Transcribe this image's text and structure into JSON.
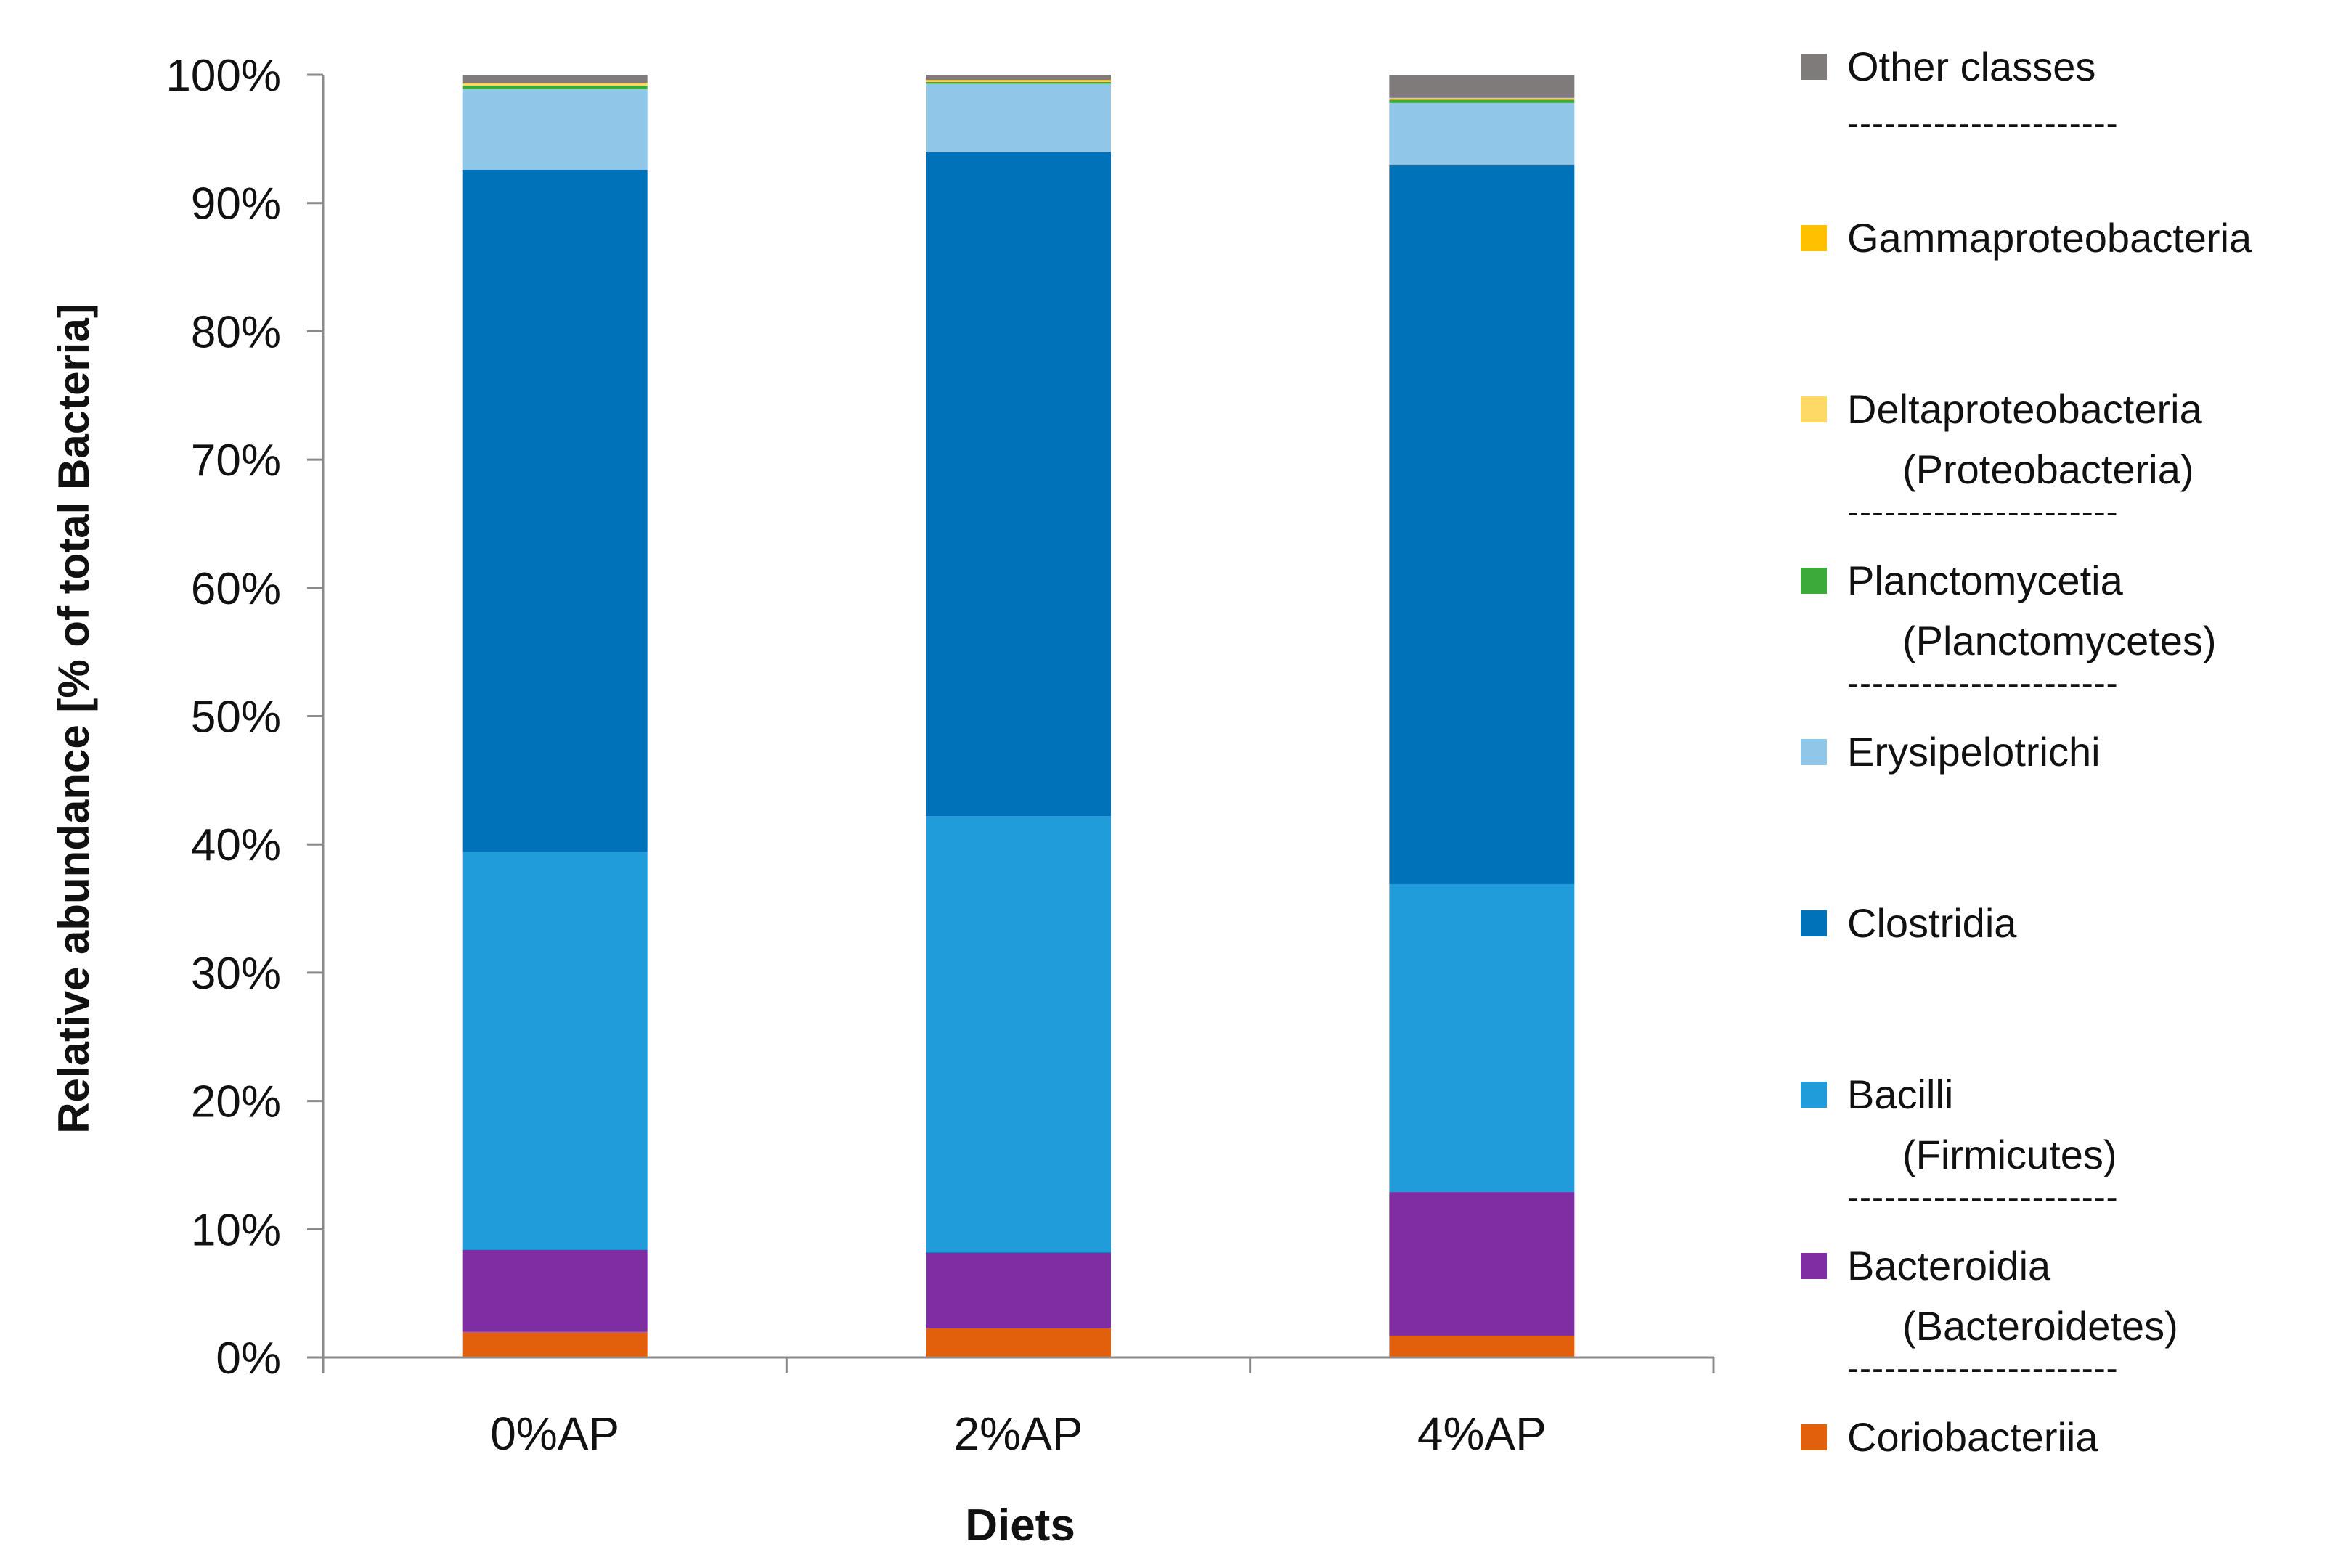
{
  "chart_data": {
    "type": "bar",
    "stacked": true,
    "percent": true,
    "xlabel": "Diets",
    "ylabel": "Relative abundance [% of total Bacteria]",
    "ylim": [
      0,
      100
    ],
    "yticks": [
      0,
      10,
      20,
      30,
      40,
      50,
      60,
      70,
      80,
      90,
      100
    ],
    "ytick_labels": [
      "0%",
      "10%",
      "20%",
      "30%",
      "40%",
      "50%",
      "60%",
      "70%",
      "80%",
      "90%",
      "100%"
    ],
    "categories": [
      "0%AP",
      "2%AP",
      "4%AP"
    ],
    "series": [
      {
        "name": "Coriobacteriia",
        "color": "#E2600B",
        "values": [
          2.0,
          2.3,
          1.7
        ]
      },
      {
        "name": "Bacteroidia",
        "color": "#7F2DA3",
        "values": [
          6.4,
          5.9,
          11.2
        ]
      },
      {
        "name": "Bacilli",
        "color": "#1F9CD9",
        "values": [
          31.0,
          34.0,
          24.0
        ]
      },
      {
        "name": "Clostridia",
        "color": "#0072BA",
        "values": [
          53.2,
          51.8,
          56.1
        ]
      },
      {
        "name": "Erysipelotrichi",
        "color": "#90C6E8",
        "values": [
          6.3,
          5.3,
          4.8
        ]
      },
      {
        "name": "Planctomycetia",
        "color": "#3BAA3B",
        "values": [
          0.25,
          0.15,
          0.25
        ]
      },
      {
        "name": "Deltaproteobacteria",
        "color": "#FFD966",
        "values": [
          0.15,
          0.1,
          0.1
        ]
      },
      {
        "name": "Gammaproteobacteria",
        "color": "#FFC000",
        "values": [
          0.05,
          0.05,
          0.05
        ]
      },
      {
        "name": "Other classes",
        "color": "#7F7B7B",
        "values": [
          0.65,
          0.4,
          1.8
        ]
      }
    ],
    "legend": {
      "position": "right",
      "entries": [
        {
          "color": "#7F7B7B",
          "label": "Other classes",
          "sub": "",
          "separator": "----------------------"
        },
        {
          "color": "#FFC000",
          "label": "Gammaproteobacteria",
          "sub": "",
          "separator": ""
        },
        {
          "color": "#FFD966",
          "label": "Deltaproteobacteria",
          "sub": "(Proteobacteria)",
          "separator": "----------------------"
        },
        {
          "color": "#3BAA3B",
          "label": "Planctomycetia",
          "sub": "(Planctomycetes)",
          "separator": "----------------------"
        },
        {
          "color": "#90C6E8",
          "label": "Erysipelotrichi",
          "sub": "",
          "separator": ""
        },
        {
          "color": "#0072BA",
          "label": "Clostridia",
          "sub": "",
          "separator": ""
        },
        {
          "color": "#1F9CD9",
          "label": "Bacilli",
          "sub": "(Firmicutes)",
          "separator": "----------------------"
        },
        {
          "color": "#7F2DA3",
          "label": "Bacteroidia",
          "sub": "(Bacteroidetes)",
          "separator": "----------------------"
        },
        {
          "color": "#E2600B",
          "label": "Coriobacteriia",
          "sub": "",
          "separator": ""
        }
      ]
    }
  }
}
